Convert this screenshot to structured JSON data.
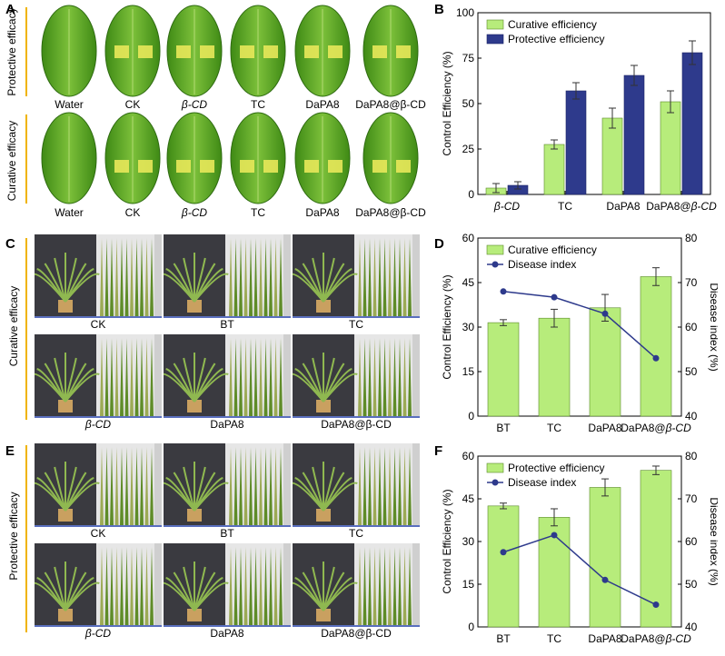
{
  "colors": {
    "bar_green": "#b7ec7b",
    "bar_green_edge": "#5a8a2a",
    "bar_navy": "#2e3a8c",
    "line_navy": "#2e3a8c",
    "leaf_green": "#4f9a1e",
    "leaf_lesion": "#e8e85a",
    "photo_bg": "#2b2b2e",
    "side_bar": "#f0b400",
    "caption_rule": "#5a6fbf"
  },
  "panel_A": {
    "letter": "A",
    "row1_label": "Protective efficacy",
    "row2_label": "Curative efficacy",
    "leaf_labels": [
      "Water",
      "CK",
      "β-CD",
      "TC",
      "DaPA8",
      "DaPA8@β-CD"
    ],
    "row1_leaves": [
      "leaf-water-protective",
      "leaf-ck-protective",
      "leaf-bcd-protective",
      "leaf-tc-protective",
      "leaf-dapa8-protective",
      "leaf-dapa8bcd-protective"
    ],
    "row2_leaves": [
      "leaf-water-curative",
      "leaf-ck-curative",
      "leaf-bcd-curative",
      "leaf-tc-curative",
      "leaf-dapa8-curative",
      "leaf-dapa8bcd-curative"
    ]
  },
  "panel_C": {
    "letter": "C",
    "side_label": "Curative efficacy",
    "captions": [
      "CK",
      "BT",
      "TC",
      "β-CD",
      "DaPA8",
      "DaPA8@β-CD"
    ]
  },
  "panel_E": {
    "letter": "E",
    "side_label": "Protective efficacy",
    "captions": [
      "CK",
      "BT",
      "TC",
      "β-CD",
      "DaPA8",
      "DaPA8@β-CD"
    ]
  },
  "chart_data": [
    {
      "panel": "B",
      "type": "bar",
      "categories": [
        "β-CD",
        "TC",
        "DaPA8",
        "DaPA8@β-CD"
      ],
      "series": [
        {
          "name": "Curative efficiency",
          "values": [
            3.5,
            27.5,
            42,
            51
          ],
          "errors": [
            2.5,
            2.5,
            5.5,
            6
          ]
        },
        {
          "name": "Protective efficiency",
          "values": [
            5,
            57,
            65.5,
            78
          ],
          "errors": [
            2,
            4.5,
            5.5,
            6.5
          ]
        }
      ],
      "ylabel": "Control Efficiency (%)",
      "xlabel": "",
      "ylim": [
        0,
        100
      ],
      "yticks": [
        "0",
        "25",
        "50",
        "75",
        "100"
      ],
      "legend": "top-left"
    },
    {
      "panel": "D",
      "type": "bar",
      "categories": [
        "BT",
        "TC",
        "DaPA8",
        "DaPA8@β-CD"
      ],
      "series": [
        {
          "name": "Curative efficiency",
          "values": [
            31.5,
            33,
            36.5,
            47
          ],
          "errors": [
            1,
            3,
            4.5,
            3
          ]
        }
      ],
      "line_series": {
        "name": "Disease index",
        "values": [
          68,
          66.7,
          63,
          53
        ]
      },
      "ylabel": "Control Efficiency (%)",
      "y2label": "Disease index (%)",
      "ylim": [
        0,
        60
      ],
      "y2lim": [
        40,
        80
      ],
      "yticks": [
        "0",
        "15",
        "30",
        "45",
        "60"
      ],
      "y2ticks": [
        "40",
        "50",
        "60",
        "70",
        "80"
      ],
      "legend": "top-left"
    },
    {
      "panel": "F",
      "type": "bar",
      "categories": [
        "BT",
        "TC",
        "DaPA8",
        "DaPA8@β-CD"
      ],
      "series": [
        {
          "name": "Protective efficiency",
          "values": [
            42.5,
            38.5,
            49,
            55
          ],
          "errors": [
            1,
            3,
            3,
            1.5
          ]
        }
      ],
      "line_series": {
        "name": "Disease index",
        "values": [
          57.5,
          61.5,
          51,
          45.2
        ]
      },
      "ylabel": "Control Efficiency (%)",
      "y2label": "Disease index (%)",
      "ylim": [
        0,
        60
      ],
      "y2lim": [
        40,
        80
      ],
      "yticks": [
        "0",
        "15",
        "30",
        "45",
        "60"
      ],
      "y2ticks": [
        "40",
        "50",
        "60",
        "70",
        "80"
      ],
      "legend": "top-left"
    }
  ]
}
